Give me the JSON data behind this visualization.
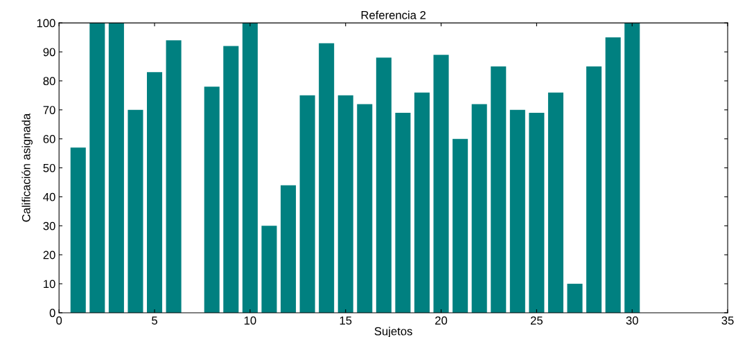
{
  "chart_data": {
    "type": "bar",
    "title": "Referencia 2",
    "xlabel": "Sujetos",
    "ylabel": "Calificación asignada",
    "x": [
      1,
      2,
      3,
      4,
      5,
      6,
      7,
      8,
      9,
      10,
      11,
      12,
      13,
      14,
      15,
      16,
      17,
      18,
      19,
      20,
      21,
      22,
      23,
      24,
      25,
      26,
      27,
      28,
      29,
      30
    ],
    "values": [
      57,
      100,
      100,
      70,
      83,
      94,
      0,
      78,
      92,
      100,
      30,
      44,
      75,
      93,
      75,
      72,
      88,
      69,
      76,
      89,
      60,
      72,
      85,
      70,
      69,
      76,
      10,
      85,
      95,
      100
    ],
    "color": "#008080",
    "xlim": [
      0,
      35
    ],
    "xticks": [
      0,
      5,
      10,
      15,
      20,
      25,
      30,
      35
    ],
    "ylim": [
      0,
      100
    ],
    "yticks": [
      0,
      10,
      20,
      30,
      40,
      50,
      60,
      70,
      80,
      90,
      100
    ],
    "grid": false
  }
}
